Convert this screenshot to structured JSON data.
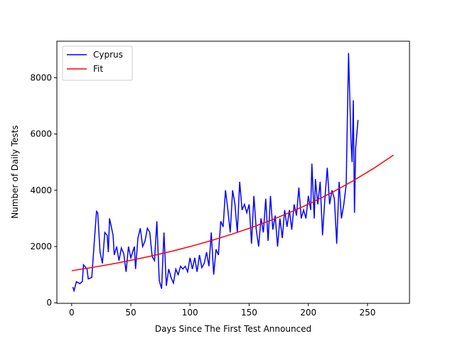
{
  "chart_data": {
    "type": "line",
    "xlabel": "Days Since The First Test Announced",
    "ylabel": "Number of Daily Tests",
    "xlim": [
      -12.5,
      285.5
    ],
    "ylim": [
      -20,
      9300
    ],
    "xticks": [
      0,
      50,
      100,
      150,
      200,
      250
    ],
    "yticks": [
      0,
      2000,
      4000,
      6000,
      8000
    ],
    "grid": false,
    "legend": "upper left",
    "series": [
      {
        "name": "Cyprus",
        "color": "#0000ff",
        "x": [
          1,
          2,
          4,
          7,
          9,
          10,
          13,
          14,
          17,
          19,
          21,
          22,
          24,
          26,
          28,
          30,
          31,
          32,
          35,
          36,
          38,
          40,
          42,
          44,
          46,
          48,
          50,
          53,
          54,
          56,
          58,
          60,
          62,
          64,
          66,
          68,
          70,
          72,
          74,
          76,
          78,
          80,
          82,
          84,
          86,
          88,
          90,
          92,
          94,
          96,
          98,
          100,
          102,
          104,
          106,
          108,
          110,
          112,
          114,
          116,
          118,
          120,
          122,
          124,
          126,
          128,
          130,
          132,
          134,
          136,
          138,
          140,
          142,
          144,
          146,
          148,
          150,
          152,
          154,
          156,
          158,
          160,
          162,
          164,
          166,
          168,
          170,
          172,
          174,
          176,
          178,
          180,
          182,
          184,
          186,
          188,
          190,
          192,
          194,
          196,
          198,
          200,
          202,
          203,
          205,
          206,
          208,
          210,
          212,
          214,
          216,
          218,
          220,
          222,
          224,
          226,
          228,
          230,
          232,
          234,
          236,
          237,
          238,
          239,
          240,
          242
        ],
        "values": [
          560,
          430,
          750,
          680,
          760,
          1350,
          1200,
          850,
          900,
          2100,
          3250,
          3200,
          1800,
          1400,
          2500,
          2400,
          1800,
          3000,
          2400,
          1700,
          2000,
          1500,
          1950,
          1750,
          1100,
          2000,
          1600,
          2000,
          1200,
          2300,
          2650,
          2000,
          2200,
          2650,
          2500,
          1650,
          1500,
          2900,
          800,
          500,
          2500,
          600,
          1200,
          900,
          700,
          1200,
          1000,
          1300,
          1200,
          1300,
          1100,
          1600,
          1200,
          1600,
          1100,
          1700,
          1250,
          1400,
          1800,
          1300,
          2500,
          1000,
          1900,
          1700,
          2900,
          2700,
          4000,
          3300,
          2500,
          4000,
          3500,
          2500,
          4300,
          3300,
          3500,
          3200,
          3500,
          2100,
          3800,
          2600,
          2000,
          3000,
          2500,
          3700,
          2200,
          3800,
          2600,
          3100,
          2000,
          3000,
          2300,
          3300,
          2700,
          3300,
          2600,
          3500,
          3100,
          4100,
          3000,
          3300,
          3000,
          3800,
          3300,
          4950,
          3000,
          4400,
          3500,
          4300,
          2400,
          3700,
          4800,
          3500,
          4000,
          3700,
          2100,
          4300,
          3000,
          3500,
          4200,
          8880,
          5800,
          5000,
          7200,
          3200,
          5500,
          6500
        ]
      },
      {
        "name": "Fit",
        "color": "#ff0000",
        "x": [
          0,
          17,
          34,
          51,
          68,
          85,
          102,
          119,
          136,
          153,
          170,
          187,
          204,
          221,
          238,
          255,
          272
        ],
        "values": [
          1140,
          1254,
          1379,
          1518,
          1670,
          1837,
          2021,
          2224,
          2447,
          2692,
          2962,
          3258,
          3585,
          3944,
          4340,
          4774,
          5253
        ]
      }
    ]
  }
}
